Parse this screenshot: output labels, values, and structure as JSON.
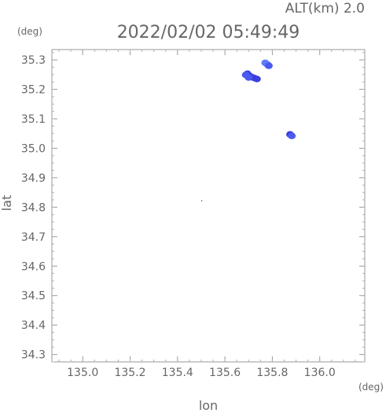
{
  "chart_data": {
    "type": "scatter",
    "title": "2022/02/02 05:49:49",
    "altitude_label": "ALT(km) 2.0",
    "xlabel": "lon",
    "ylabel": "lat",
    "x_unit": "(deg)",
    "y_unit": "(deg)",
    "xlim": [
      134.87,
      136.19
    ],
    "ylim": [
      34.275,
      35.335
    ],
    "x_ticks": [
      "135.0",
      "135.2",
      "135.4",
      "135.6",
      "135.8",
      "136.0"
    ],
    "y_ticks": [
      "34.3",
      "34.4",
      "34.5",
      "34.6",
      "34.7",
      "34.8",
      "34.9",
      "35.0",
      "35.1",
      "35.2",
      "35.3"
    ],
    "grid": false,
    "colors": {
      "deep_blue": "#3b3fe0",
      "mid_blue": "#4a5af0",
      "light_blue": "#5f7cf8",
      "marker": "#333333"
    },
    "clusters": [
      {
        "lon": 135.695,
        "lat": 35.253,
        "color": "#3b3fe0"
      },
      {
        "lon": 135.705,
        "lat": 35.245,
        "color": "#3b3fe0"
      },
      {
        "lon": 135.715,
        "lat": 35.241,
        "color": "#3b3fe0"
      },
      {
        "lon": 135.725,
        "lat": 35.238,
        "color": "#3b3fe0"
      },
      {
        "lon": 135.735,
        "lat": 35.235,
        "color": "#3b3fe0"
      },
      {
        "lon": 135.688,
        "lat": 35.249,
        "color": "#4a5af0"
      },
      {
        "lon": 135.7,
        "lat": 35.24,
        "color": "#4a5af0"
      },
      {
        "lon": 135.77,
        "lat": 35.29,
        "color": "#5f7cf8"
      },
      {
        "lon": 135.78,
        "lat": 35.284,
        "color": "#5f7cf8"
      },
      {
        "lon": 135.785,
        "lat": 35.28,
        "color": "#4a5af0"
      },
      {
        "lon": 135.875,
        "lat": 35.047,
        "color": "#3b3fe0"
      },
      {
        "lon": 135.882,
        "lat": 35.042,
        "color": "#4a5af0"
      }
    ],
    "marker_point": {
      "lon": 135.502,
      "lat": 34.822
    }
  }
}
